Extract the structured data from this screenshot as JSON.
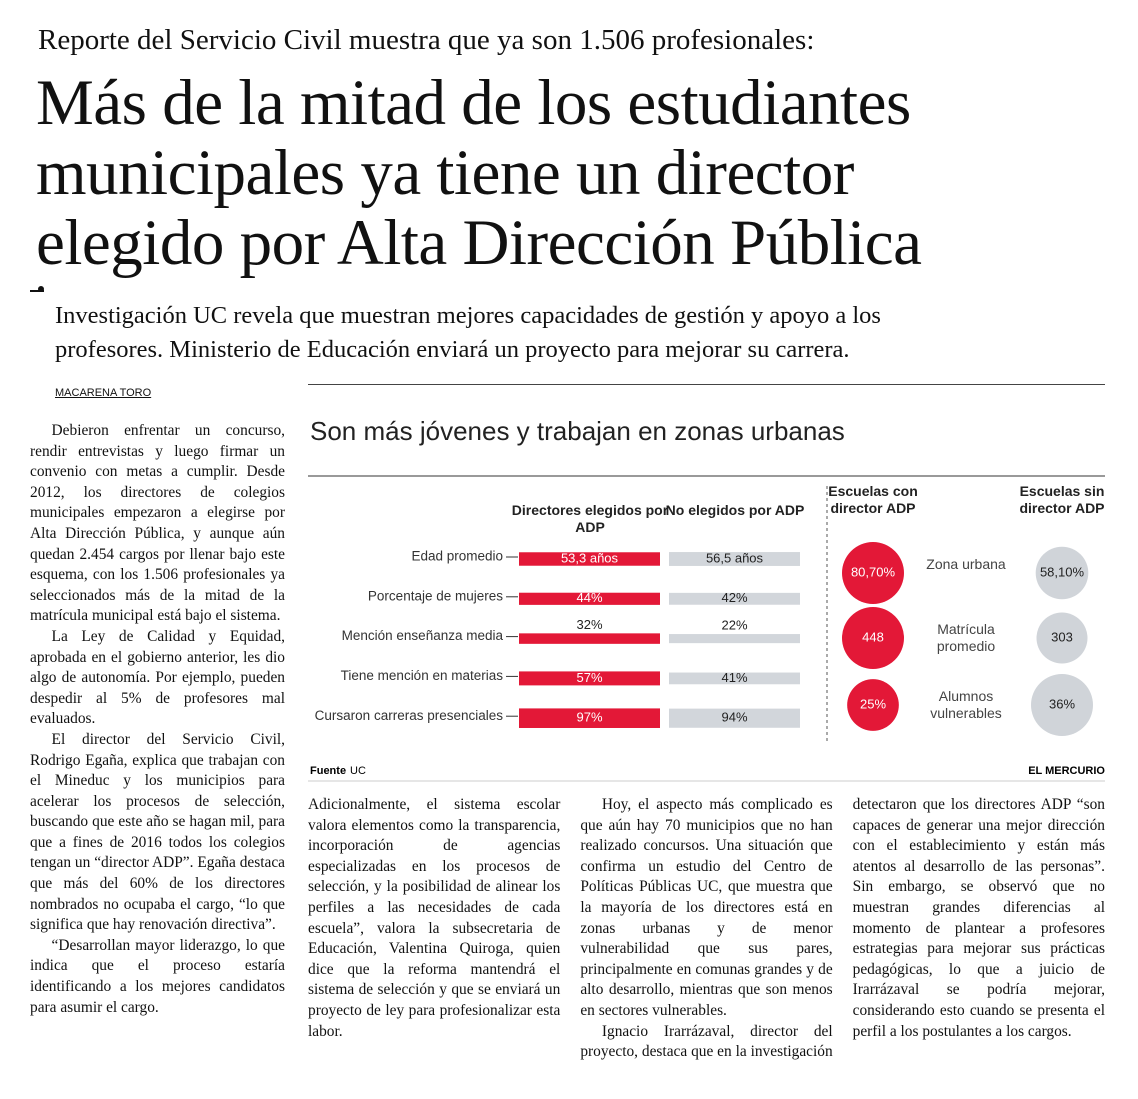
{
  "header": {
    "kicker": "Reporte del Servicio Civil muestra que ya son 1.506 profesionales:",
    "title": [
      "Más de la mitad de los estudiantes",
      "municipales ya tiene un director",
      "elegido por Alta Dirección Pública"
    ],
    "deck": [
      "Investigación UC revela que muestran mejores capacidades de gestión y apoyo a los",
      "profesores. Ministerio de Educación enviará un proyecto para mejorar su carrera."
    ]
  },
  "byline": "MACARENA TORO",
  "graphic": {
    "title": "Son más jóvenes y trabajan en zonas urbanas",
    "columns": [
      "Directores elegidos por ADP",
      "No elegidos por ADP"
    ],
    "colors": [
      "#e31837",
      "#d2d6db"
    ],
    "rows": [
      {
        "label": "Edad promedio",
        "values": [
          53.3,
          56.5
        ],
        "value_labels": [
          "53,3 años",
          "56,5 años"
        ]
      },
      {
        "label": "Porcentaje de mujeres",
        "values": [
          44,
          42
        ],
        "value_labels": [
          "44%",
          "42%"
        ]
      },
      {
        "label": "Mención enseñanza media",
        "values": [
          32,
          22
        ],
        "value_labels": [
          "32%",
          "22%"
        ]
      },
      {
        "label": "Tiene mención en materias",
        "values": [
          57,
          41
        ],
        "value_labels": [
          "57%",
          "41%"
        ]
      },
      {
        "label": "Cursaron carreras presenciales",
        "values": [
          97,
          94
        ],
        "value_labels": [
          "97%",
          "94%"
        ]
      }
    ],
    "schools": {
      "columns": [
        "Escuelas con director ADP",
        "Escuelas sin director ADP"
      ],
      "rows": [
        {
          "label": "Zona urbana",
          "values": [
            80.7,
            58.1
          ],
          "value_labels": [
            "80,70%",
            "58,10%"
          ]
        },
        {
          "label": "Matrícula promedio",
          "values": [
            448,
            303
          ]
        },
        {
          "label": "Alumnos vulnerables",
          "values": [
            25,
            36
          ],
          "value_labels": [
            "25%",
            "36%"
          ]
        }
      ]
    },
    "source_label": "Fuente",
    "source": "UC",
    "publisher": "EL MERCURIO"
  },
  "body": {
    "column1": [
      "Debieron enfrentar un concurso, rendir entrevistas y luego firmar un convenio con metas a cumplir. Desde 2012, los directores de colegios municipales empezaron a elegirse por Alta Dirección Pública, y aunque aún quedan 2.454 cargos por llenar bajo este esquema, con los 1.506 profesionales ya seleccionados más de la mitad de la matrícula municipal está bajo el sistema.",
      "La Ley de Calidad y Equidad, aprobada en el gobierno anterior, les dio algo de autonomía. Por ejemplo, pueden despedir al 5% de profesores mal evaluados.",
      "El director del Servicio Civil, Rodrigo Egaña, explica que trabajan con el Mineduc y los municipios para acelerar los procesos de selección, buscando que este año se hagan mil, para que a fines de 2016 todos los colegios tengan un “director ADP”. Egaña destaca que más del 60% de los directores nombrados no ocupaba el cargo, “lo que significa que hay renovación directiva”.",
      "“Desarrollan mayor liderazgo, lo que indica que el proceso estaría identificando a los mejores candidatos para asumir el cargo."
    ],
    "columns": [
      "Adicionalmente, el sistema escolar valora elementos como la transparencia, incorporación de agencias especializadas en los procesos de selección, y la posibilidad de alinear los perfiles a las necesidades de cada escuela”, valora la subsecretaria de Educación, Valentina Quiroga, quien dice que la reforma mantendrá el sistema de selección y que se enviará un proyecto de ley para profesionalizar esta labor.",
      "Hoy, el aspecto más complicado es que aún hay 70 municipios que no han realizado concursos. Una situación que confirma un estudio del Centro de Políticas Públicas UC, que muestra que la mayoría de los directores está en zonas urbanas y de menor vulnerabilidad que sus pares, principalmente en comunas grandes y de alto desarrollo, mientras que son menos en sectores vulnerables.",
      "Ignacio Irarrázaval, director del proyecto, destaca que en la investigación detectaron que los directores ADP “son capaces de generar una mejor dirección con el establecimiento y están más atentos al desarrollo de las personas”. Sin embargo, se observó que no muestran grandes diferencias al momento de plantear a profesores estrategias para mejorar sus prácticas pedagógicas, lo que a juicio de Irarrázaval se podría mejorar, considerando esto cuando se presenta el perfil a los postulantes a los cargos."
    ]
  }
}
